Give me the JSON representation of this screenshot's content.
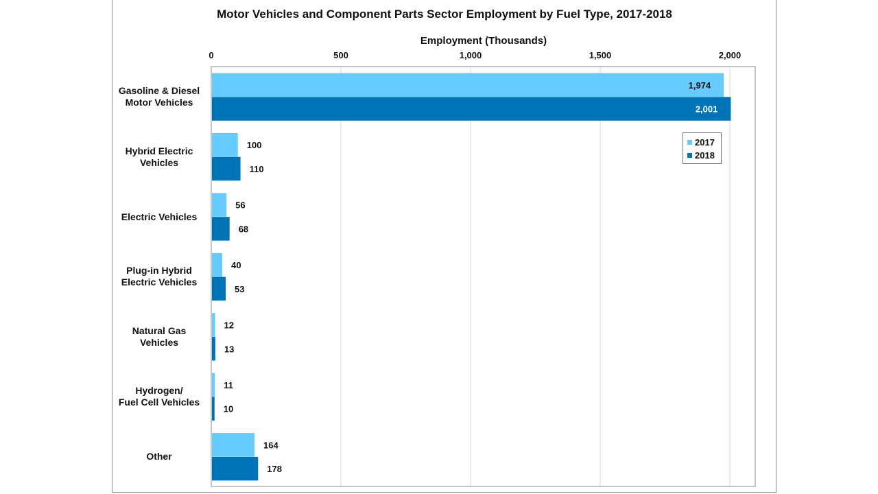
{
  "chart_data": {
    "type": "bar",
    "orientation": "horizontal",
    "title": "Motor Vehicles and Component Parts Sector Employment by Fuel Type, 2017-2018",
    "xlabel": "Employment (Thousands)",
    "ylabel": "",
    "xlim": [
      0,
      2000
    ],
    "x_ticks": [
      "0",
      "500",
      "1,000",
      "1,500",
      "2,000"
    ],
    "x_tick_values": [
      0,
      500,
      1000,
      1500,
      2000
    ],
    "grid": true,
    "legend_position": "top-right",
    "categories": [
      [
        "Gasoline & Diesel",
        "Motor Vehicles"
      ],
      [
        "Hybrid Electric",
        "Vehicles"
      ],
      [
        "Electric Vehicles"
      ],
      [
        "Plug-in Hybrid",
        "Electric Vehicles"
      ],
      [
        "Natural Gas",
        "Vehicles"
      ],
      [
        "Hydrogen/",
        "Fuel Cell Vehicles"
      ],
      [
        "Other"
      ]
    ],
    "series": [
      {
        "name": "2017",
        "color": "#66ccff",
        "values": [
          1974,
          100,
          56,
          40,
          12,
          11,
          164
        ],
        "labels": [
          "1,974",
          "100",
          "56",
          "40",
          "12",
          "11",
          "164"
        ]
      },
      {
        "name": "2018",
        "color": "#0073b7",
        "values": [
          2001,
          110,
          68,
          53,
          13,
          10,
          178
        ],
        "labels": [
          "2,001",
          "110",
          "68",
          "53",
          "13",
          "10",
          "178"
        ]
      }
    ]
  }
}
